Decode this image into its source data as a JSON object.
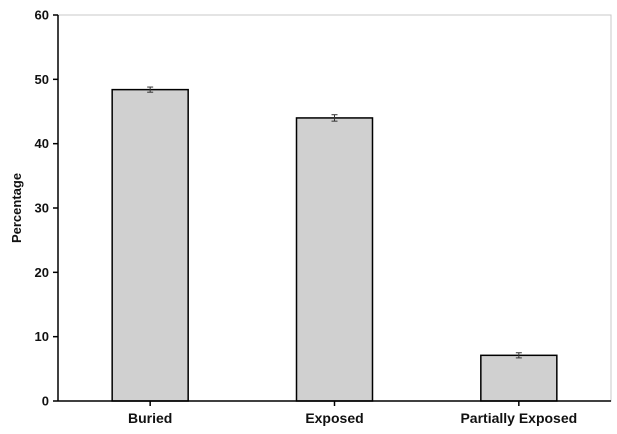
{
  "chart_data": {
    "type": "bar",
    "title": "",
    "xlabel": "",
    "ylabel": "Percentage",
    "ylim": [
      0,
      60
    ],
    "yticks": [
      0,
      10,
      20,
      30,
      40,
      50,
      60
    ],
    "categories": [
      "Buried",
      "Exposed",
      "Partially Exposed"
    ],
    "values": [
      48.4,
      44.0,
      7.1
    ],
    "errors": [
      0.4,
      0.5,
      0.4
    ],
    "grid": false,
    "legend": "none",
    "colors": {
      "bar_fill": "#d0d0d0",
      "bar_stroke": "#000000",
      "axis": "#000000",
      "plot_border": "#c8c8c8"
    }
  }
}
